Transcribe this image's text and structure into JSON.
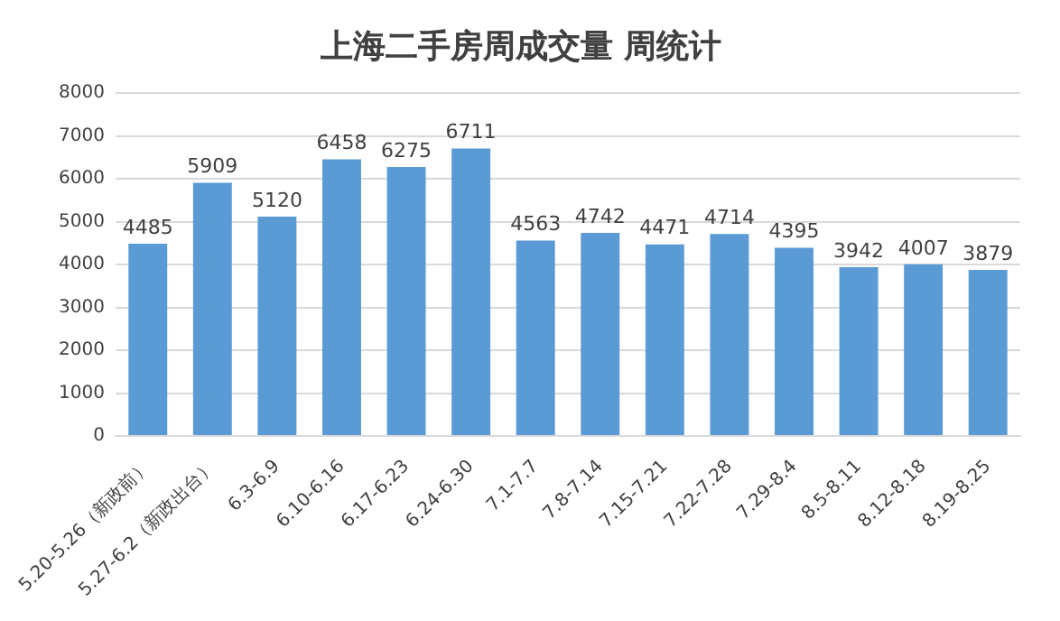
{
  "chart_data": {
    "type": "bar",
    "title": "上海二手房周成交量 周统计",
    "categories": [
      "5.20-5.26（新政前）",
      "5.27-6.2（新政出台）",
      "6.3-6.9",
      "6.10-6.16",
      "6.17-6.23",
      "6.24-6.30",
      "7.1-7.7",
      "7.8-7.14",
      "7.15-7.21",
      "7.22-7.28",
      "7.29-8.4",
      "8.5-8.11",
      "8.12-8.18",
      "8.19-8.25"
    ],
    "values": [
      4485,
      5909,
      5120,
      6458,
      6275,
      6711,
      4563,
      4742,
      4471,
      4714,
      4395,
      3942,
      4007,
      3879
    ],
    "color": "#5b9bd5",
    "ylim": [
      0,
      8000
    ],
    "yticks": [
      0,
      1000,
      2000,
      3000,
      4000,
      5000,
      6000,
      7000,
      8000
    ],
    "grid": "y",
    "data_labels": true
  }
}
